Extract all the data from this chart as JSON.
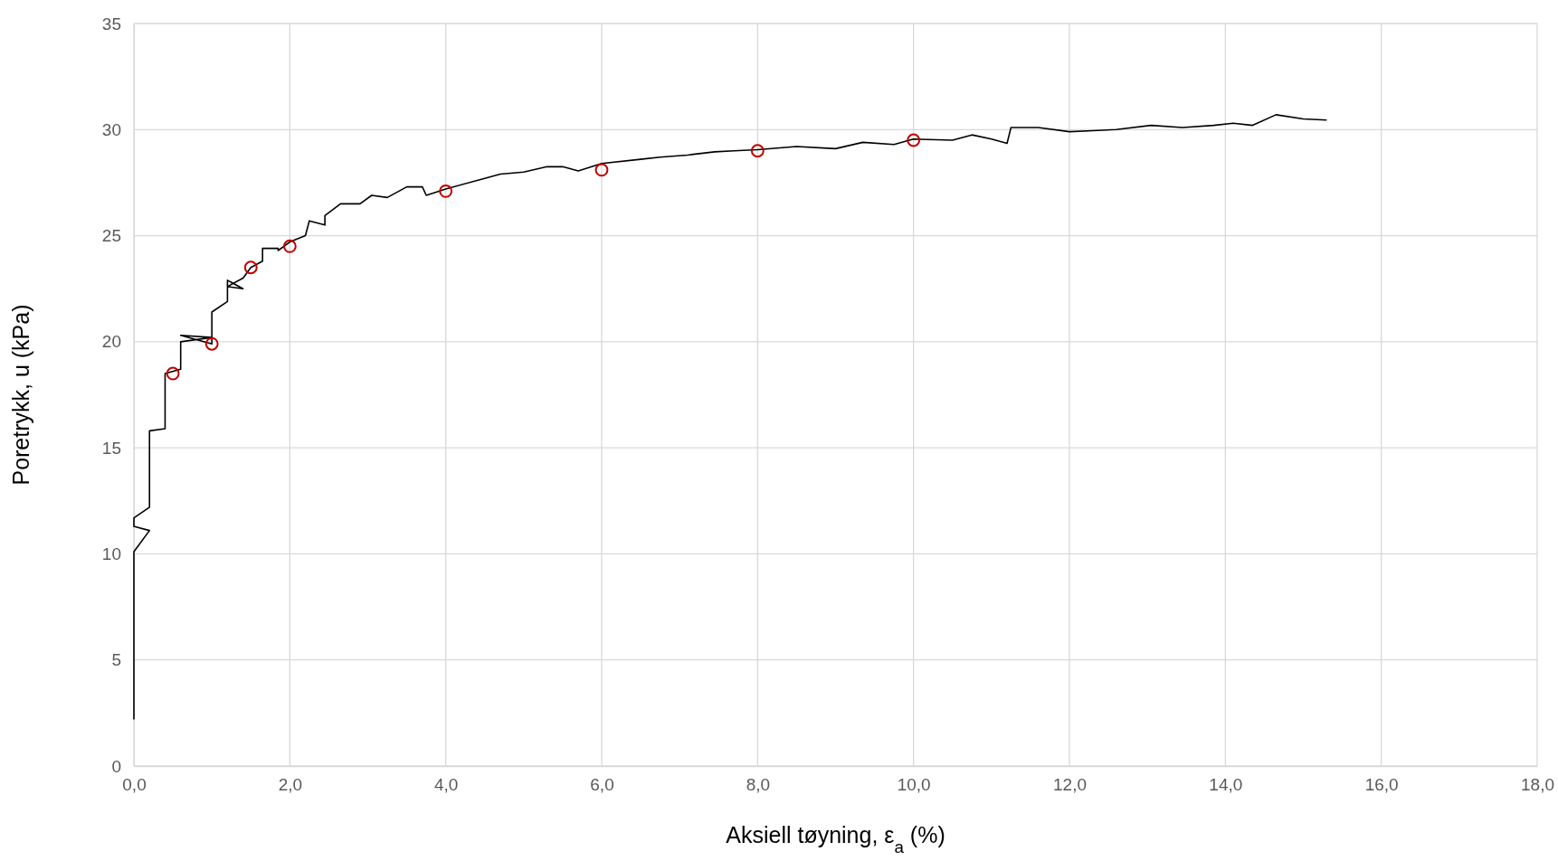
{
  "chart_data": {
    "type": "line",
    "xlabel": "Aksiell tøyning, ε$_{a}$ (%)",
    "ylabel": "Poretrykk, u (kPa)",
    "xlim": [
      0,
      18
    ],
    "xticks": [
      {
        "value": 0,
        "label": "0,0"
      },
      {
        "value": 2,
        "label": "2,0"
      },
      {
        "value": 4,
        "label": "4,0"
      },
      {
        "value": 6,
        "label": "6,0"
      },
      {
        "value": 8,
        "label": "8,0"
      },
      {
        "value": 10,
        "label": "10,0"
      },
      {
        "value": 12,
        "label": "12,0"
      },
      {
        "value": 14,
        "label": "14,0"
      },
      {
        "value": 16,
        "label": "16,0"
      },
      {
        "value": 18,
        "label": "18,0"
      }
    ],
    "ylim": [
      0,
      35
    ],
    "yticks": [
      0,
      5,
      10,
      15,
      20,
      25,
      30,
      35
    ],
    "grid": true,
    "series": [
      {
        "color": "#000000",
        "marker": "none",
        "line_style": "solid",
        "x": [
          0,
          0,
          0.2,
          0,
          0,
          0.2,
          0.2,
          0.4,
          0.4,
          0.6,
          0.6,
          1.0,
          0.6,
          1.0,
          1.0,
          1.2,
          1.2,
          1.4,
          1.2,
          1.4,
          1.5,
          1.65,
          1.65,
          1.85,
          1.85,
          2.0,
          2.2,
          2.25,
          2.45,
          2.45,
          2.65,
          2.9,
          3.05,
          3.25,
          3.5,
          3.7,
          3.75,
          4.0,
          4.5,
          4.7,
          5.0,
          5.3,
          5.5,
          5.7,
          6.0,
          6.5,
          6.75,
          7.1,
          7.45,
          7.7,
          8.0,
          8.5,
          9.0,
          9.35,
          9.75,
          10.0,
          10.5,
          10.75,
          11.0,
          11.2,
          11.25,
          11.6,
          12.0,
          12.3,
          12.6,
          13.05,
          13.45,
          13.85,
          14.1,
          14.35,
          14.65,
          15.0,
          15.3
        ],
        "values": [
          2.2,
          10.1,
          11.1,
          11.3,
          11.7,
          12.2,
          15.8,
          15.9,
          18.5,
          18.7,
          20.0,
          20.2,
          20.3,
          19.9,
          21.4,
          21.9,
          22.9,
          22.5,
          22.6,
          23.0,
          23.5,
          23.8,
          24.4,
          24.4,
          24.3,
          24.7,
          25.0,
          25.7,
          25.5,
          25.95,
          26.5,
          26.5,
          26.9,
          26.8,
          27.3,
          27.3,
          26.9,
          27.2,
          27.7,
          27.9,
          28.0,
          28.25,
          28.25,
          28.05,
          28.4,
          28.6,
          28.7,
          28.8,
          28.95,
          29.0,
          29.05,
          29.2,
          29.1,
          29.4,
          29.3,
          29.55,
          29.5,
          29.75,
          29.55,
          29.35,
          30.1,
          30.1,
          29.9,
          29.95,
          30.0,
          30.2,
          30.1,
          30.2,
          30.3,
          30.2,
          30.7,
          30.5,
          30.45
        ]
      },
      {
        "type": "scatter",
        "color": "#c00000",
        "marker": "circle",
        "x": [
          0.5,
          1,
          1.5,
          2,
          4,
          6,
          8,
          10
        ],
        "values": [
          18.5,
          19.9,
          23.5,
          24.5,
          27.1,
          28.1,
          29.0,
          29.5
        ]
      }
    ]
  }
}
